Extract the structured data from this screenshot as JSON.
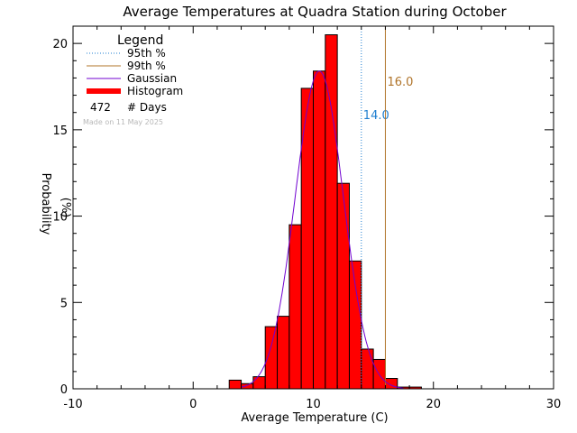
{
  "chart_data": {
    "type": "bar",
    "title": "Average Temperatures at Quadra Station during October",
    "xlabel": "Average Temperature (C)",
    "ylabel": "Probability",
    "ylabel_unit": "(%)",
    "xlim": [
      -10,
      30
    ],
    "ylim": [
      0,
      21
    ],
    "x_ticks": [
      "-10",
      "0",
      "10",
      "20",
      "30"
    ],
    "y_ticks": [
      "0",
      "5",
      "10",
      "15",
      "20"
    ],
    "histogram": {
      "name": "Histogram",
      "bin_edges": [
        3,
        4,
        5,
        6,
        7,
        8,
        9,
        10,
        11,
        12,
        13,
        14,
        15,
        16,
        17,
        18,
        19
      ],
      "values": [
        0.5,
        0.3,
        0.7,
        3.6,
        4.2,
        9.5,
        17.4,
        18.4,
        20.5,
        11.9,
        7.4,
        2.3,
        1.7,
        0.6,
        0.1,
        0.1
      ]
    },
    "gaussian": {
      "name": "Gaussian",
      "mean": 10.5,
      "sigma": 2.0,
      "peak": 18.4
    },
    "percentiles": [
      {
        "name": "95th %",
        "value": 14.0,
        "label": "14.0",
        "color": "#1f7fd0"
      },
      {
        "name": "99th %",
        "value": 16.0,
        "label": "16.0",
        "color": "#b0742a"
      }
    ],
    "legend": {
      "title": "Legend",
      "position": "top-left",
      "items": [
        {
          "label": "95th %",
          "style": "dotted",
          "color": "#1f7fd0"
        },
        {
          "label": "99th %",
          "style": "solid",
          "color": "#b0742a"
        },
        {
          "label": "Gaussian",
          "style": "solid",
          "color": "#7000d0"
        },
        {
          "label": "Histogram",
          "style": "thick",
          "color": "#ff0000"
        }
      ],
      "days_count": "472",
      "days_label": "# Days"
    },
    "watermark": "Made on 11 May 2025",
    "colors": {
      "bar_fill": "#ff0000",
      "bar_edge": "#000000",
      "gaussian": "#7000d0"
    }
  }
}
